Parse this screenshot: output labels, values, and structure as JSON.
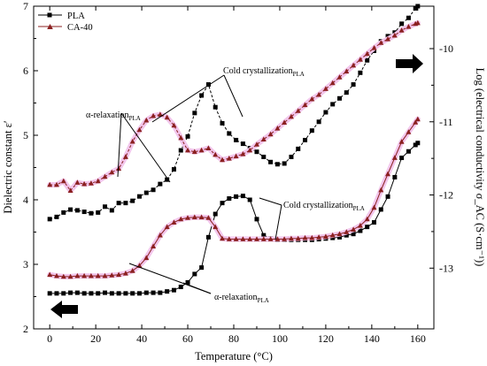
{
  "chart_data": {
    "type": "line",
    "xlabel": "Temperature (°C)",
    "ylabel_left": "Dielectric constant ε′",
    "ylabel_right": "Log (electrical conductivity σ_AC (S·cm⁻¹))",
    "x_ticks": [
      "0",
      "20",
      "40",
      "60",
      "80",
      "100",
      "120",
      "140",
      "160"
    ],
    "y_left_ticks": [
      "2",
      "3",
      "4",
      "5",
      "6",
      "7"
    ],
    "y_right_ticks": [
      "-13",
      "-12",
      "-11",
      "-10"
    ],
    "xlim": [
      -7,
      167
    ],
    "ylim_left": [
      2,
      7
    ],
    "ylim_right": [
      -13.83,
      -9.42
    ],
    "legend": [
      "PLA",
      "CA-40"
    ],
    "colors": {
      "PLA": "#000000",
      "CA-40": "#8b2020",
      "CA-40-halo": "#f2c6ec"
    },
    "series": [
      {
        "name": "PLA",
        "axis": "left",
        "marker": "square",
        "line": "solid",
        "x": [
          0,
          3,
          6,
          9,
          12,
          15,
          18,
          21,
          24,
          27,
          30,
          33,
          36,
          39,
          42,
          45,
          48,
          51,
          54,
          57,
          60,
          63,
          66,
          69,
          72,
          75,
          78,
          81,
          84,
          87,
          90,
          93,
          96,
          99,
          102,
          105,
          108,
          111,
          114,
          117,
          120,
          123,
          126,
          129,
          132,
          135,
          138,
          141,
          144,
          147,
          150,
          153,
          156,
          159,
          160
        ],
        "values": [
          2.55,
          2.55,
          2.55,
          2.56,
          2.56,
          2.55,
          2.55,
          2.55,
          2.56,
          2.55,
          2.55,
          2.55,
          2.55,
          2.55,
          2.56,
          2.56,
          2.56,
          2.58,
          2.6,
          2.65,
          2.72,
          2.85,
          2.95,
          3.42,
          3.78,
          3.95,
          4.02,
          4.05,
          4.06,
          4.0,
          3.7,
          3.45,
          3.4,
          3.38,
          3.38,
          3.38,
          3.38,
          3.38,
          3.38,
          3.39,
          3.4,
          3.41,
          3.42,
          3.45,
          3.47,
          3.52,
          3.58,
          3.65,
          3.85,
          4.05,
          4.35,
          4.65,
          4.75,
          4.85,
          4.88
        ]
      },
      {
        "name": "PLA",
        "axis": "right",
        "marker": "square",
        "line": "dashed",
        "x": [
          0,
          3,
          6,
          9,
          12,
          15,
          18,
          21,
          24,
          27,
          30,
          33,
          36,
          39,
          42,
          45,
          48,
          51,
          54,
          57,
          60,
          63,
          66,
          69,
          72,
          75,
          78,
          81,
          84,
          87,
          90,
          93,
          96,
          99,
          102,
          105,
          108,
          111,
          114,
          117,
          120,
          123,
          126,
          129,
          132,
          135,
          138,
          141,
          144,
          147,
          150,
          153,
          156,
          159,
          160
        ],
        "values": [
          -12.33,
          -12.3,
          -12.24,
          -12.2,
          -12.21,
          -12.23,
          -12.25,
          -12.24,
          -12.16,
          -12.21,
          -12.11,
          -12.11,
          -12.08,
          -12.02,
          -11.97,
          -11.93,
          -11.85,
          -11.79,
          -11.65,
          -11.39,
          -11.2,
          -10.88,
          -10.64,
          -10.49,
          -10.8,
          -11.02,
          -11.16,
          -11.25,
          -11.3,
          -11.36,
          -11.41,
          -11.48,
          -11.55,
          -11.58,
          -11.57,
          -11.48,
          -11.37,
          -11.25,
          -11.12,
          -11.0,
          -10.87,
          -10.76,
          -10.68,
          -10.6,
          -10.49,
          -10.33,
          -10.16,
          -10.03,
          -9.9,
          -9.83,
          -9.78,
          -9.66,
          -9.58,
          -9.45,
          -9.42
        ]
      },
      {
        "name": "CA-40",
        "axis": "left",
        "marker": "triangle",
        "line": "solid",
        "x": [
          0,
          3,
          6,
          9,
          12,
          15,
          18,
          21,
          24,
          27,
          30,
          33,
          36,
          39,
          42,
          45,
          48,
          51,
          54,
          57,
          60,
          63,
          66,
          69,
          72,
          75,
          78,
          81,
          84,
          87,
          90,
          93,
          96,
          99,
          102,
          105,
          108,
          111,
          114,
          117,
          120,
          123,
          126,
          129,
          132,
          135,
          138,
          141,
          144,
          147,
          150,
          153,
          156,
          159,
          160
        ],
        "values": [
          2.84,
          2.82,
          2.81,
          2.81,
          2.82,
          2.82,
          2.82,
          2.82,
          2.82,
          2.83,
          2.84,
          2.86,
          2.9,
          2.98,
          3.1,
          3.28,
          3.45,
          3.58,
          3.65,
          3.7,
          3.72,
          3.73,
          3.73,
          3.72,
          3.58,
          3.4,
          3.39,
          3.39,
          3.39,
          3.39,
          3.39,
          3.39,
          3.39,
          3.39,
          3.39,
          3.4,
          3.4,
          3.41,
          3.41,
          3.42,
          3.43,
          3.45,
          3.47,
          3.5,
          3.54,
          3.6,
          3.7,
          3.88,
          4.15,
          4.4,
          4.65,
          4.9,
          5.05,
          5.2,
          5.25
        ]
      },
      {
        "name": "CA-40",
        "axis": "right",
        "marker": "triangle",
        "line": "dashed",
        "x": [
          0,
          3,
          6,
          9,
          12,
          15,
          18,
          21,
          24,
          27,
          30,
          33,
          36,
          39,
          42,
          45,
          48,
          51,
          54,
          57,
          60,
          63,
          66,
          69,
          72,
          75,
          78,
          81,
          84,
          87,
          90,
          93,
          96,
          99,
          102,
          105,
          108,
          111,
          114,
          117,
          120,
          123,
          126,
          129,
          132,
          135,
          138,
          141,
          144,
          147,
          150,
          153,
          156,
          159,
          160
        ],
        "values": [
          -11.86,
          -11.86,
          -11.81,
          -11.94,
          -11.83,
          -11.85,
          -11.84,
          -11.81,
          -11.75,
          -11.69,
          -11.64,
          -11.48,
          -11.27,
          -11.11,
          -10.98,
          -10.92,
          -10.9,
          -10.94,
          -11.05,
          -11.22,
          -11.39,
          -11.41,
          -11.39,
          -11.36,
          -11.45,
          -11.52,
          -11.5,
          -11.47,
          -11.44,
          -11.39,
          -11.31,
          -11.24,
          -11.17,
          -11.09,
          -11.01,
          -10.93,
          -10.85,
          -10.77,
          -10.69,
          -10.63,
          -10.55,
          -10.47,
          -10.39,
          -10.31,
          -10.23,
          -10.15,
          -10.07,
          -9.99,
          -9.92,
          -9.87,
          -9.82,
          -9.75,
          -9.7,
          -9.66,
          -9.65
        ]
      }
    ],
    "annotations": [
      {
        "main": "Cold crystallization",
        "sub": "PLA"
      },
      {
        "main": "α-relaxation",
        "sub": "PLA"
      },
      {
        "main": "Cold crystallization",
        "sub": "PLA"
      },
      {
        "main": "α-relaxation",
        "sub": "PLA"
      }
    ]
  }
}
